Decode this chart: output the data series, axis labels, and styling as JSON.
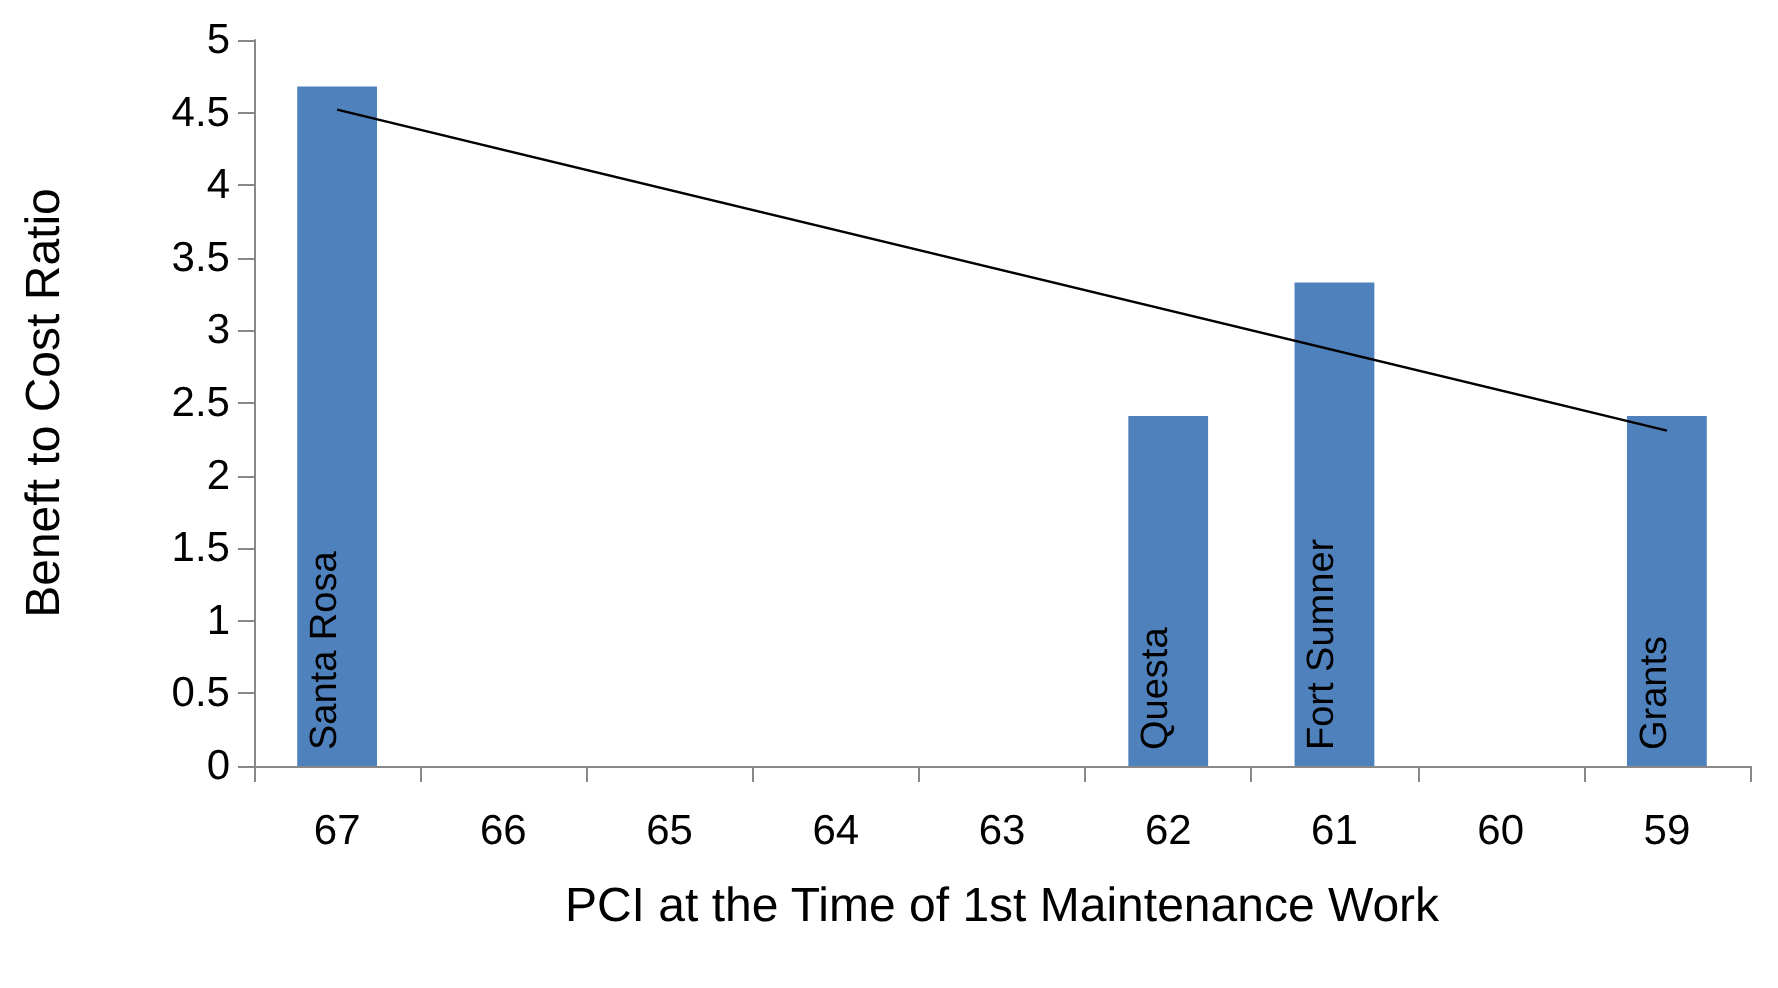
{
  "chart_data": {
    "type": "bar",
    "xlabel": "PCI at the Time of 1st Maintenance Work",
    "ylabel": "Beneft to Cost Ratio",
    "categories": [
      "67",
      "66",
      "65",
      "64",
      "63",
      "62",
      "61",
      "60",
      "59"
    ],
    "series": [
      {
        "color": "#4f81bd",
        "values": [
          4.68,
          null,
          null,
          null,
          null,
          2.41,
          3.33,
          null,
          2.41
        ],
        "value_labels": [
          "Santa Rosa",
          null,
          null,
          null,
          null,
          "Questa",
          "Fort Sumner",
          null,
          "Grants"
        ]
      },
      {
        "type": "line",
        "color": "#000000",
        "x": [
          "67",
          "59"
        ],
        "values": [
          4.52,
          2.31
        ]
      }
    ],
    "ylim": [
      0,
      5
    ],
    "yticks": [
      0,
      0.5,
      1,
      1.5,
      2,
      2.5,
      3,
      3.5,
      4,
      4.5,
      5
    ],
    "grid": false,
    "marker": "none"
  }
}
